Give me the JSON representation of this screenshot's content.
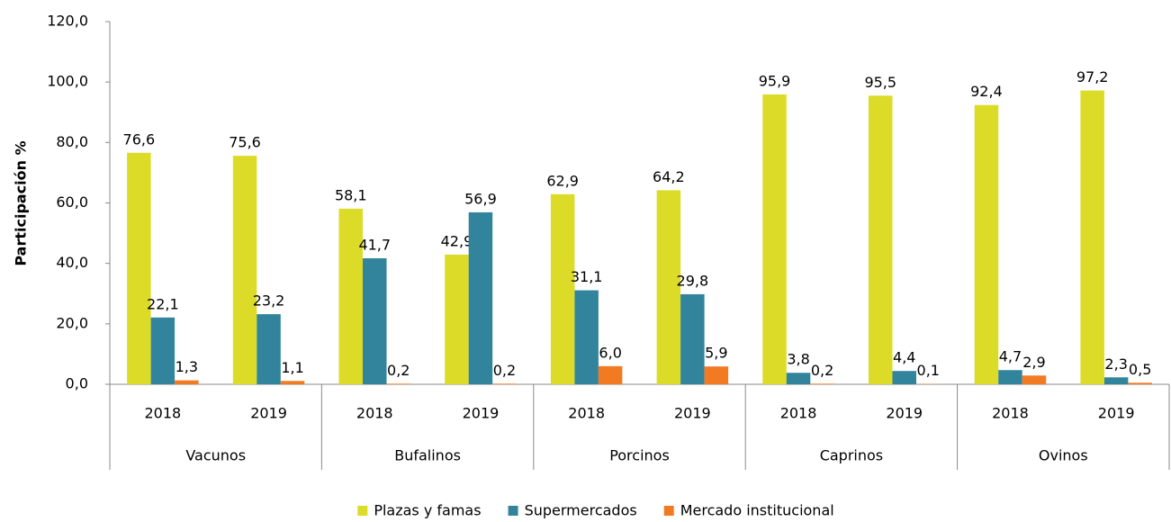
{
  "chart_data": {
    "type": "bar",
    "y_label": "Participación %",
    "categories": [
      "2018",
      "2019",
      "2018",
      "2019",
      "2018",
      "2019",
      "2018",
      "2019",
      "2018",
      "2019"
    ],
    "groups": [
      "Vacunos",
      "Bufalinos",
      "Porcinos",
      "Caprinos",
      "Ovinos"
    ],
    "series": [
      {
        "name": "Plazas y famas",
        "color": "#dcdc28",
        "values": [
          76.6,
          75.6,
          58.1,
          42.9,
          62.9,
          64.2,
          95.9,
          95.5,
          92.4,
          97.2
        ],
        "value_labels": [
          "76,6",
          "75,6",
          "58,1",
          "42,9",
          "62,9",
          "64,2",
          "95,9",
          "95,5",
          "92,4",
          "97,2"
        ]
      },
      {
        "name": "Supermercados",
        "color": "#31849b",
        "values": [
          22.1,
          23.2,
          41.7,
          56.9,
          31.1,
          29.8,
          3.8,
          4.4,
          4.7,
          2.3
        ],
        "value_labels": [
          "22,1",
          "23,2",
          "41,7",
          "56,9",
          "31,1",
          "29,8",
          "3,8",
          "4,4",
          "4,7",
          "2,3"
        ]
      },
      {
        "name": "Mercado institucional",
        "color": "#f27a22",
        "values": [
          1.3,
          1.1,
          0.2,
          0.2,
          6.0,
          5.9,
          0.2,
          0.1,
          2.9,
          0.5
        ],
        "value_labels": [
          "1,3",
          "1,1",
          "0,2",
          "0,2",
          "6,0",
          "5,9",
          "0,2",
          "0,1",
          "2,9",
          "0,5"
        ]
      }
    ],
    "ylim": [
      0,
      120
    ],
    "yticks": [
      {
        "value": 0,
        "label": "0,0"
      },
      {
        "value": 20,
        "label": "20,0"
      },
      {
        "value": 40,
        "label": "40,0"
      },
      {
        "value": 60,
        "label": "60,0"
      },
      {
        "value": 80,
        "label": "80,0"
      },
      {
        "value": 100,
        "label": "100,0"
      },
      {
        "value": 120,
        "label": "120,0"
      }
    ],
    "legend": "bottom"
  }
}
